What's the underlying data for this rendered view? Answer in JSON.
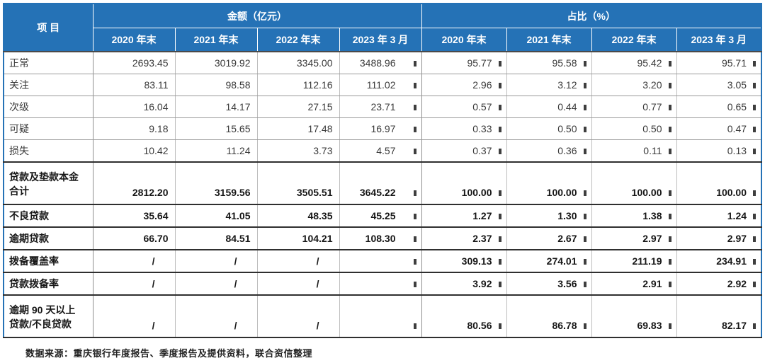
{
  "colors": {
    "header_blue": "#2572b6"
  },
  "table": {
    "col_group_item": "项  目",
    "col_group_amount": "金额（亿元）",
    "col_group_pct": "占比（%）",
    "period_headers": [
      "2020 年末",
      "2021 年末",
      "2022 年末",
      "2023 年 3 月"
    ],
    "rows": [
      {
        "label": "正常",
        "bold": false,
        "amounts": [
          "2693.45",
          "3019.92",
          "3345.00",
          "3488.96"
        ],
        "pcts": [
          "95.77",
          "95.58",
          "95.42",
          "95.71"
        ]
      },
      {
        "label": "关注",
        "bold": false,
        "amounts": [
          "83.11",
          "98.58",
          "112.16",
          "111.02"
        ],
        "pcts": [
          "2.96",
          "3.12",
          "3.20",
          "3.05"
        ]
      },
      {
        "label": "次级",
        "bold": false,
        "amounts": [
          "16.04",
          "14.17",
          "27.15",
          "23.71"
        ],
        "pcts": [
          "0.57",
          "0.44",
          "0.77",
          "0.65"
        ]
      },
      {
        "label": "可疑",
        "bold": false,
        "amounts": [
          "9.18",
          "15.65",
          "17.48",
          "16.97"
        ],
        "pcts": [
          "0.33",
          "0.50",
          "0.50",
          "0.47"
        ]
      },
      {
        "label": "损失",
        "bold": false,
        "amounts": [
          "10.42",
          "11.24",
          "3.73",
          "4.57"
        ],
        "pcts": [
          "0.37",
          "0.36",
          "0.11",
          "0.13"
        ]
      },
      {
        "label": "贷款及垫款本金",
        "label2": "合计",
        "bold": true,
        "amounts": [
          "2812.20",
          "3159.56",
          "3505.51",
          "3645.22"
        ],
        "pcts": [
          "100.00",
          "100.00",
          "100.00",
          "100.00"
        ]
      },
      {
        "label": "不良贷款",
        "bold": true,
        "amounts": [
          "35.64",
          "41.05",
          "48.35",
          "45.25"
        ],
        "pcts": [
          "1.27",
          "1.30",
          "1.38",
          "1.24"
        ]
      },
      {
        "label": "逾期贷款",
        "bold": true,
        "amounts": [
          "66.70",
          "84.51",
          "104.21",
          "108.30"
        ],
        "pcts": [
          "2.37",
          "2.67",
          "2.97",
          "2.97"
        ]
      },
      {
        "label": "拨备覆盖率",
        "bold": true,
        "amounts": [
          "/",
          "/",
          "/",
          ""
        ],
        "pcts": [
          "309.13",
          "274.01",
          "211.19",
          "234.91"
        ]
      },
      {
        "label": "贷款拨备率",
        "bold": true,
        "amounts": [
          "/",
          "/",
          "/",
          ""
        ],
        "pcts": [
          "3.92",
          "3.56",
          "2.91",
          "2.92"
        ]
      },
      {
        "label": "逾期 90 天以上",
        "label2": "贷款/不良贷款",
        "bold": true,
        "amounts": [
          "/",
          "/",
          "/",
          ""
        ],
        "pcts": [
          "80.56",
          "86.78",
          "69.83",
          "82.17"
        ]
      }
    ]
  },
  "footer": {
    "source": "数据来源：重庆银行年度报告、季度报告及提供资料，联合资信整理"
  }
}
